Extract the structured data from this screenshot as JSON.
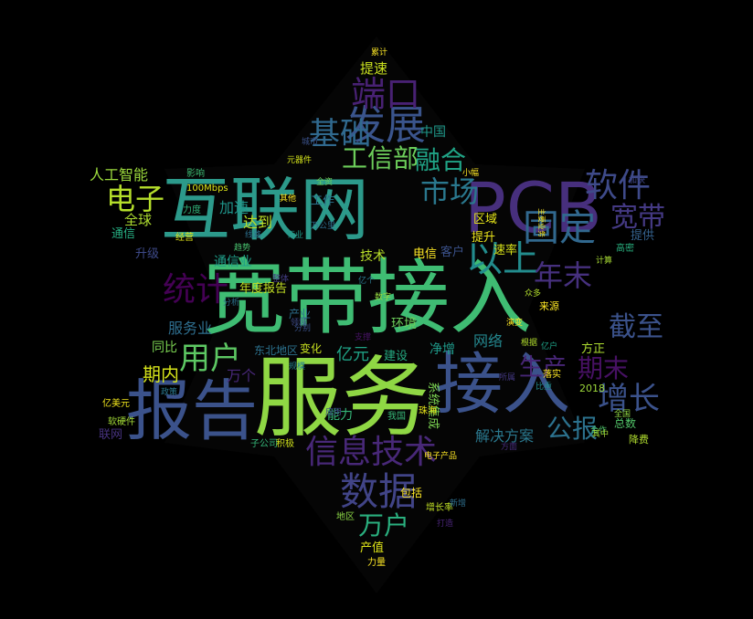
{
  "background_color": "#000000",
  "palette": [
    "#440154",
    "#46327e",
    "#365c8d",
    "#277f8e",
    "#1fa187",
    "#4ac16d",
    "#a0da39",
    "#fde725"
  ],
  "words": [
    {
      "text": "宽带接入",
      "color": "#3fbc73"
    },
    {
      "text": "服务",
      "color": "#8fd744"
    },
    {
      "text": "接入",
      "color": "#3b528b"
    },
    {
      "text": "互联网",
      "color": "#2c9a8b"
    },
    {
      "text": "PCB",
      "color": "#472f7d"
    },
    {
      "text": "报告",
      "color": "#3b528b"
    },
    {
      "text": "信息技术",
      "color": "#482878"
    },
    {
      "text": "数据",
      "color": "#414487"
    },
    {
      "text": "发展",
      "color": "#3a548c"
    },
    {
      "text": "端口",
      "color": "#482173"
    },
    {
      "text": "软件",
      "color": "#3e4a89"
    },
    {
      "text": "固定",
      "color": "#31688e"
    },
    {
      "text": "以上",
      "color": "#228c8d"
    },
    {
      "text": "年末",
      "color": "#46307e"
    },
    {
      "text": "宽带",
      "color": "#443983"
    },
    {
      "text": "市场",
      "color": "#2a788e"
    },
    {
      "text": "电子",
      "color": "#b5de2b"
    },
    {
      "text": "基础",
      "color": "#30698e"
    },
    {
      "text": "工信部",
      "color": "#6ccd5a"
    },
    {
      "text": "融合",
      "color": "#20a486"
    },
    {
      "text": "用户",
      "color": "#5dc863"
    },
    {
      "text": "统计",
      "color": "#440154"
    },
    {
      "text": "增长",
      "color": "#3b528b"
    },
    {
      "text": "期末",
      "color": "#471164"
    },
    {
      "text": "截至",
      "color": "#3b528b"
    },
    {
      "text": "公报",
      "color": "#2c728e"
    },
    {
      "text": "万户",
      "color": "#2ab07f"
    },
    {
      "text": "期内",
      "color": "#d5e21a"
    },
    {
      "text": "生产",
      "color": "#482677"
    },
    {
      "text": "亿元",
      "color": "#20a386"
    },
    {
      "text": "解决方案",
      "color": "#2a788e"
    },
    {
      "text": "人工智能",
      "color": "#9bd93c"
    },
    {
      "text": "全球",
      "color": "#addc30"
    },
    {
      "text": "服务业",
      "color": "#2e6e8e"
    },
    {
      "text": "加速",
      "color": "#1f958b"
    },
    {
      "text": "达到",
      "color": "#bddf26"
    },
    {
      "text": "通信业",
      "color": "#1f9e89"
    },
    {
      "text": "年度报告",
      "color": "#c2df23"
    },
    {
      "text": "同比",
      "color": "#7ad151"
    },
    {
      "text": "万个",
      "color": "#482878"
    },
    {
      "text": "区域",
      "color": "#e5e419"
    },
    {
      "text": "提升",
      "color": "#ece51b"
    },
    {
      "text": "速率",
      "color": "#d8e219"
    },
    {
      "text": "网络",
      "color": "#24878e"
    },
    {
      "text": "净增",
      "color": "#1f9a8a"
    },
    {
      "text": "建设",
      "color": "#25ab82"
    },
    {
      "text": "能力",
      "color": "#35b779"
    },
    {
      "text": "环境",
      "color": "#6ccd5a"
    },
    {
      "text": "方正",
      "color": "#addc30"
    },
    {
      "text": "中国",
      "color": "#1f998a"
    },
    {
      "text": "提速",
      "color": "#cae11f"
    },
    {
      "text": "变化",
      "color": "#c8e020"
    },
    {
      "text": "东北地区",
      "color": "#2c728e"
    },
    {
      "text": "技术",
      "color": "#b8de29"
    },
    {
      "text": "客户",
      "color": "#3b528b"
    },
    {
      "text": "电信",
      "color": "#fde725"
    },
    {
      "text": "产业",
      "color": "#2d708e"
    },
    {
      "text": "系统集成",
      "color": "#7ad151"
    },
    {
      "text": "联网",
      "color": "#46327e"
    },
    {
      "text": "总数",
      "color": "#52c569"
    },
    {
      "text": "包括",
      "color": "#fde725"
    },
    {
      "text": "产值",
      "color": "#dde318"
    },
    {
      "text": "提供",
      "color": "#34618d"
    },
    {
      "text": "工作",
      "color": "#2c738e"
    },
    {
      "text": "升级",
      "color": "#3e4a89"
    },
    {
      "text": "通信",
      "color": "#26ad81"
    },
    {
      "text": "降费",
      "color": "#b0dd2f"
    },
    {
      "text": "来源",
      "color": "#fde725"
    },
    {
      "text": "经营",
      "color": "#e2e418"
    },
    {
      "text": "城市",
      "color": "#3b528b"
    },
    {
      "text": "100Mbps",
      "color": "#dce319"
    },
    {
      "text": "力度",
      "color": "#31b57b"
    },
    {
      "text": "影响",
      "color": "#3dbc74"
    },
    {
      "text": "增长率",
      "color": "#c0df25"
    },
    {
      "text": "地区",
      "color": "#8bd646"
    },
    {
      "text": "力量",
      "color": "#fde725"
    },
    {
      "text": "2018",
      "color": "#9dd93b"
    },
    {
      "text": "子公司",
      "color": "#35b779"
    },
    {
      "text": "积极",
      "color": "#d0e11c"
    },
    {
      "text": "元器件",
      "color": "#d2e21b"
    },
    {
      "text": "万公里",
      "color": "#2f6c8e"
    },
    {
      "text": "趋势",
      "color": "#48c16e"
    },
    {
      "text": "计算",
      "color": "#a8db34"
    },
    {
      "text": "高密",
      "color": "#29af7f"
    },
    {
      "text": "加快",
      "color": "#3f4788"
    },
    {
      "text": "全国",
      "color": "#90d743"
    },
    {
      "text": "合作",
      "color": "#4ec36b"
    },
    {
      "text": "比重",
      "color": "#228b8d"
    },
    {
      "text": "落实",
      "color": "#fde725"
    },
    {
      "text": "亿户",
      "color": "#1fa287"
    },
    {
      "text": "我国",
      "color": "#37b878"
    },
    {
      "text": "软硬件",
      "color": "#a2da37"
    },
    {
      "text": "政策",
      "color": "#2a788e"
    },
    {
      "text": "亿美元",
      "color": "#f1e51d"
    },
    {
      "text": "电子产品",
      "color": "#fde725"
    },
    {
      "text": "珠海",
      "color": "#e7e419"
    },
    {
      "text": "新增",
      "color": "#2e6f8e"
    },
    {
      "text": "演变",
      "color": "#fde725"
    },
    {
      "text": "小幅",
      "color": "#fde725"
    },
    {
      "text": "累计",
      "color": "#fde725"
    },
    {
      "text": "其他",
      "color": "#fde725"
    },
    {
      "text": "分析",
      "color": "#2c728e"
    },
    {
      "text": "领域",
      "color": "#3e4a89"
    },
    {
      "text": "支撑",
      "color": "#471365"
    },
    {
      "text": "打造",
      "color": "#482475"
    },
    {
      "text": "众多",
      "color": "#b2dd2d"
    },
    {
      "text": "其中",
      "color": "#a5db36"
    },
    {
      "text": "线路",
      "color": "#2d708e"
    },
    {
      "text": "主要业务",
      "color": "#fde725"
    },
    {
      "text": "分别",
      "color": "#3b528b"
    },
    {
      "text": "根据",
      "color": "#b2dd2d"
    },
    {
      "text": "数字",
      "color": "#95d840"
    },
    {
      "text": "全资",
      "color": "#6ccd5a"
    },
    {
      "text": "行业",
      "color": "#1e9b8a"
    },
    {
      "text": "规模",
      "color": "#26828e"
    },
    {
      "text": "应用",
      "color": "#3e4a89"
    },
    {
      "text": "亿个",
      "color": "#2a788e"
    },
    {
      "text": "方面",
      "color": "#472c7a"
    },
    {
      "text": "整体",
      "color": "#433e85"
    },
    {
      "text": "所属",
      "color": "#443983"
    }
  ]
}
